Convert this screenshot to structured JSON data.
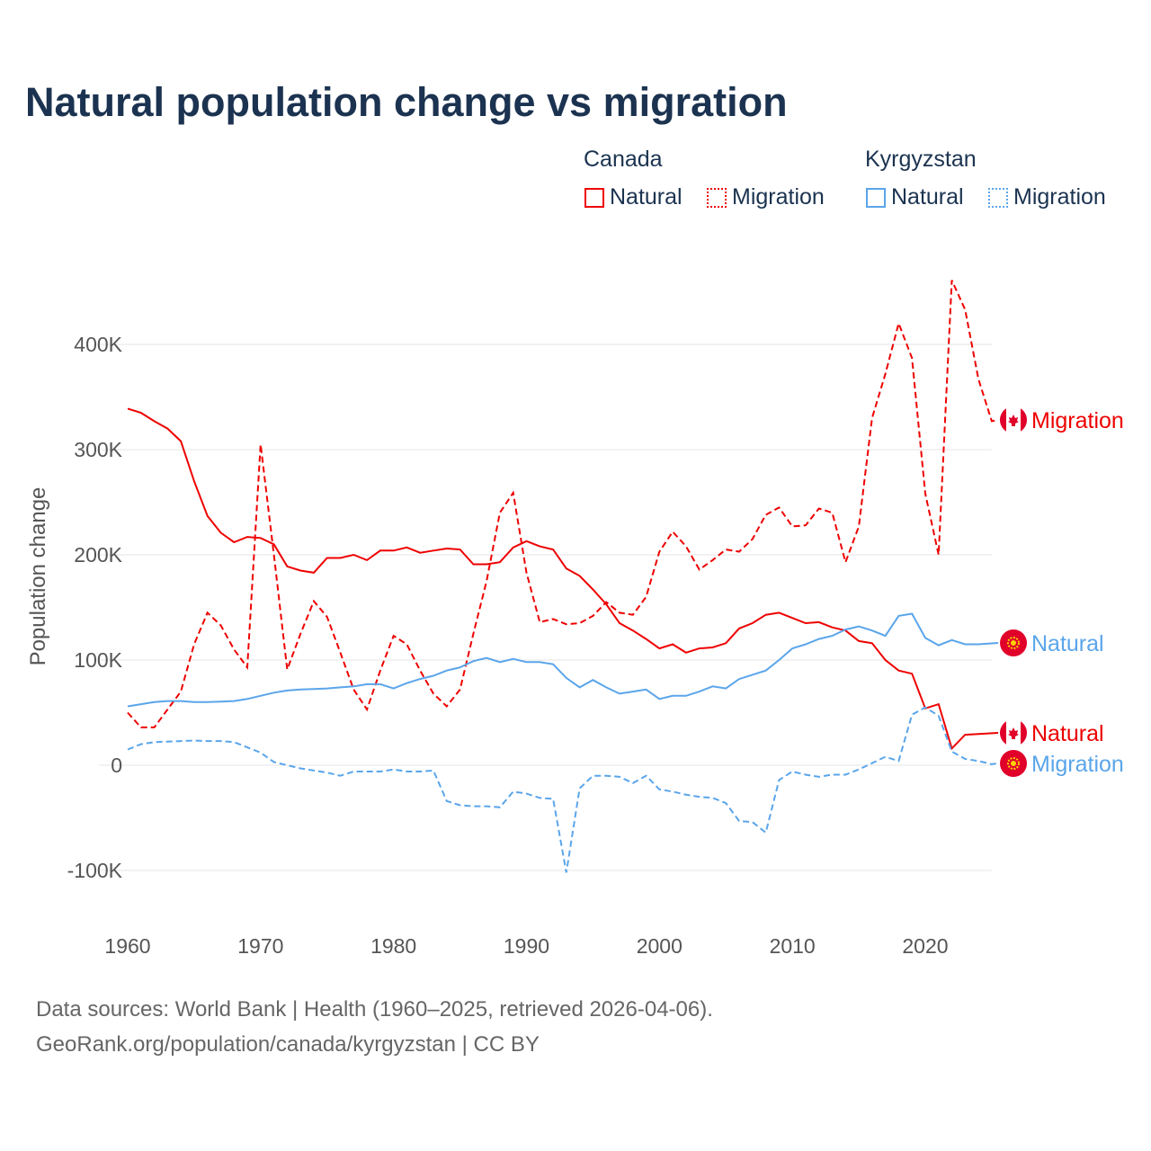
{
  "chart_data": {
    "type": "line",
    "title": "Natural population change vs migration",
    "ylabel": "Population change",
    "xlabel": "",
    "ylim": [
      -150000,
      500000
    ],
    "xlim": [
      1960,
      2025
    ],
    "yticks": [
      -100000,
      0,
      100000,
      200000,
      300000,
      400000
    ],
    "ytick_labels": [
      "-100K",
      "0",
      "100K",
      "200K",
      "300K",
      "400K"
    ],
    "xticks": [
      1960,
      1970,
      1980,
      1990,
      2000,
      2010,
      2020
    ],
    "xtick_labels": [
      "1960",
      "1970",
      "1980",
      "1990",
      "2000",
      "2010",
      "2020"
    ],
    "grid": true,
    "legend": {
      "placement": "top-right",
      "groups": [
        {
          "country": "Canada",
          "items": [
            "Natural",
            "Migration"
          ]
        },
        {
          "country": "Kyrgyzstan",
          "items": [
            "Natural",
            "Migration"
          ]
        }
      ]
    },
    "start_year": 1960,
    "series": [
      {
        "name": "Canada Natural",
        "label": "Natural",
        "country": "Canada",
        "color": "#ee0000",
        "dash": false,
        "values": [
          339,
          335,
          327,
          320,
          308,
          270,
          237,
          221,
          212,
          217,
          216,
          210,
          189,
          185,
          183,
          197,
          197,
          200,
          195,
          204,
          204,
          207,
          202,
          204,
          206,
          205,
          191,
          191,
          193,
          207,
          213,
          208,
          205,
          187,
          180,
          167,
          153,
          135,
          128,
          120,
          111,
          115,
          107,
          111,
          112,
          116,
          130,
          135,
          143,
          145,
          140,
          135,
          136,
          131,
          128,
          118,
          116,
          100,
          90,
          87,
          54,
          58,
          16,
          29
        ]
      },
      {
        "name": "Canada Migration",
        "label": "Migration",
        "country": "Canada",
        "color": "#ee0000",
        "dash": true,
        "values": [
          50,
          36,
          36,
          53,
          70,
          115,
          145,
          133,
          110,
          93,
          305,
          200,
          91,
          125,
          156,
          141,
          107,
          72,
          53,
          90,
          123,
          115,
          90,
          68,
          56,
          72,
          125,
          175,
          240,
          259,
          183,
          136,
          139,
          134,
          135,
          142,
          155,
          145,
          143,
          160,
          203,
          222,
          208,
          186,
          195,
          205,
          203,
          215,
          238,
          245,
          227,
          228,
          244,
          240,
          193,
          227,
          330,
          372,
          420,
          387,
          258,
          200,
          461,
          433,
          367,
          327
        ]
      },
      {
        "name": "Kyrgyzstan Natural",
        "label": "Natural",
        "country": "Kyrgyzstan",
        "color": "#5aa5ea",
        "dash": false,
        "values": [
          56,
          58,
          60,
          61,
          61,
          60,
          60,
          60.5,
          61,
          63,
          66,
          69,
          71,
          72,
          72.5,
          73,
          74,
          75,
          77,
          77,
          73,
          78,
          82,
          85,
          90,
          93,
          99,
          102,
          98,
          101,
          98,
          98,
          96,
          83,
          74,
          81,
          74,
          68,
          70,
          72,
          63,
          66,
          66,
          70,
          75,
          73,
          82,
          86,
          90,
          100,
          111,
          115,
          120,
          123,
          129,
          132,
          128,
          123,
          142,
          144,
          121,
          114,
          119,
          115,
          115
        ]
      },
      {
        "name": "Kyrgyzstan Migration",
        "label": "Migration",
        "country": "Kyrgyzstan",
        "color": "#5aa5ea",
        "dash": true,
        "values": [
          15,
          20,
          22,
          22.5,
          23,
          23.5,
          23,
          23,
          22,
          17,
          12,
          3,
          0,
          -3,
          -5,
          -7,
          -10,
          -6,
          -6,
          -6,
          -4,
          -6,
          -6,
          -5,
          -34,
          -38,
          -39,
          -39,
          -40,
          -25,
          -27,
          -31,
          -32,
          -102,
          -22,
          -10,
          -10,
          -11,
          -17,
          -10,
          -23,
          -25,
          -28,
          -30,
          -31,
          -36,
          -53,
          -54,
          -64,
          -14,
          -6,
          -9,
          -11,
          -9,
          -9,
          -4,
          2,
          8,
          4,
          48,
          55,
          47,
          13,
          6,
          4,
          1
        ]
      }
    ],
    "value_unit": "thousands"
  },
  "source_line1": "Data sources: World Bank | Health (1960–2025, retrieved 2026-04-06).",
  "source_line2": "GeoRank.org/population/canada/kyrgyzstan | CC BY"
}
